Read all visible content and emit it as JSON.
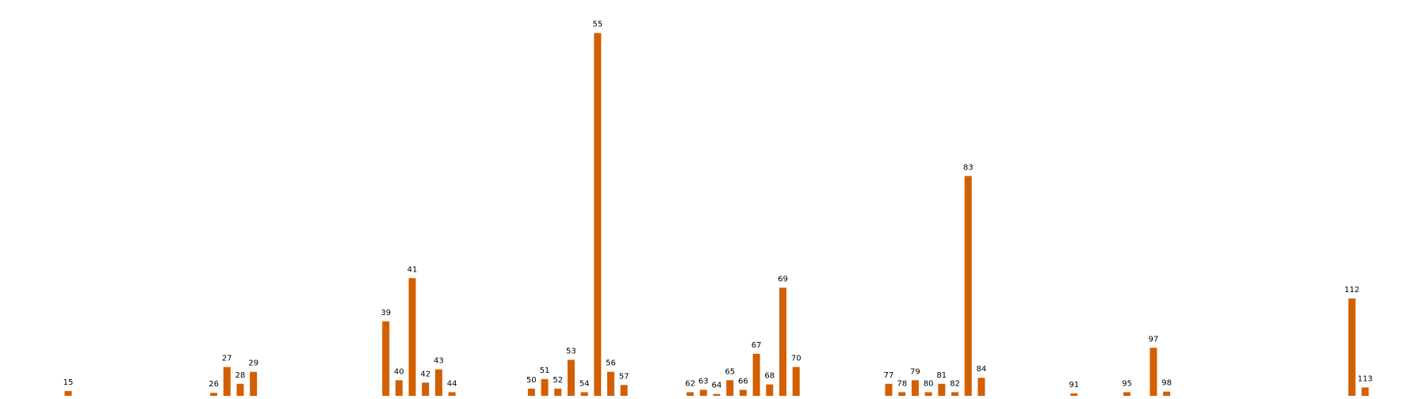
{
  "chart_data": {
    "type": "bar",
    "title": "",
    "xlabel": "",
    "ylabel": "",
    "grid": false,
    "color": "#d35f00",
    "categories": [
      "15",
      "26",
      "27",
      "28",
      "29",
      "39",
      "40",
      "41",
      "42",
      "43",
      "44",
      "50",
      "51",
      "52",
      "53",
      "54",
      "55",
      "56",
      "57",
      "62",
      "63",
      "64",
      "65",
      "66",
      "67",
      "68",
      "69",
      "70",
      "77",
      "78",
      "79",
      "80",
      "81",
      "82",
      "83",
      "84",
      "91",
      "95",
      "97",
      "98",
      "112",
      "113"
    ],
    "x": [
      15,
      26,
      27,
      28,
      29,
      39,
      40,
      41,
      42,
      43,
      44,
      50,
      51,
      52,
      53,
      54,
      55,
      56,
      57,
      62,
      63,
      64,
      65,
      66,
      67,
      68,
      69,
      70,
      77,
      78,
      79,
      80,
      81,
      82,
      83,
      84,
      91,
      95,
      97,
      98,
      112,
      113
    ],
    "values": [
      0.4,
      0.25,
      2.4,
      1.0,
      2.0,
      6.2,
      1.3,
      9.8,
      1.1,
      2.2,
      0.3,
      0.6,
      1.4,
      0.6,
      3.0,
      0.3,
      30.2,
      2.0,
      0.9,
      0.3,
      0.5,
      0.15,
      1.3,
      0.5,
      3.5,
      0.95,
      9.0,
      2.4,
      1.0,
      0.3,
      1.3,
      0.3,
      1.0,
      0.3,
      18.3,
      1.5,
      0.2,
      0.3,
      4.0,
      0.35,
      8.1,
      0.7
    ],
    "ylim": [
      0,
      31.5
    ]
  }
}
